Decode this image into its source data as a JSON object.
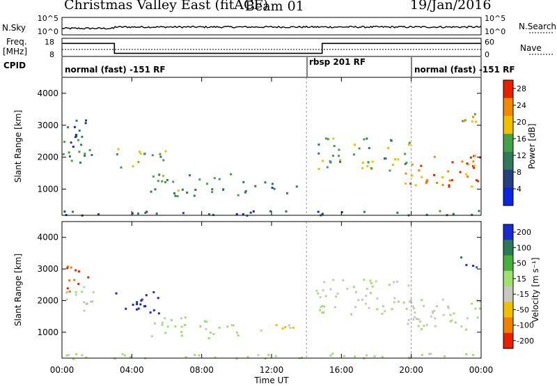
{
  "header": {
    "title": "Christmas Valley East (fitACF)",
    "beam": "Beam 01",
    "date": "19/Jan/2016"
  },
  "noise_panel": {
    "left_label": "N.Sky",
    "right_label": "N.Search",
    "left_ticks": [
      "10^5",
      "10^0"
    ],
    "right_ticks": [
      "10^5",
      "10^0"
    ]
  },
  "freq_panel": {
    "left_label_line1": "Freq.",
    "left_label_line2": "[MHz]",
    "right_label": "Nave",
    "left_ticks": [
      "18",
      "8"
    ],
    "right_ticks": [
      "60",
      "0"
    ],
    "freq_steps": [
      {
        "t0": 0,
        "t1": 3.0,
        "mhz": 16.5
      },
      {
        "t0": 3.0,
        "t1": 14.9,
        "mhz": 10.0
      },
      {
        "t0": 14.9,
        "t1": 24,
        "mhz": 16.5
      }
    ]
  },
  "cpid": {
    "label": "CPID",
    "segments": [
      {
        "text": "normal (fast) -151 RF",
        "start": 0,
        "end": 14
      },
      {
        "text": "rbsp 201 RF",
        "start": 14,
        "end": 20
      },
      {
        "text": "normal (fast) -151 RF",
        "start": 20,
        "end": 24
      }
    ]
  },
  "x_axis": {
    "label": "Time UT",
    "ticks": [
      "00:00",
      "04:00",
      "08:00",
      "12:00",
      "16:00",
      "20:00",
      "00:00"
    ]
  },
  "power_panel": {
    "ylabel": "Slant Range [km]",
    "yticks": [
      "1000",
      "2000",
      "3000",
      "4000"
    ],
    "colorbar_label": "Power [dB]",
    "colorbar_ticks": [
      "4",
      "8",
      "12",
      "16",
      "20",
      "24",
      "28"
    ],
    "colors": [
      "#0b24e0",
      "#24407e",
      "#2f7a58",
      "#46a04a",
      "#f0c000",
      "#f08a00",
      "#e82000"
    ]
  },
  "velocity_panel": {
    "ylabel": "Slant Range [km]",
    "yticks": [
      "1000",
      "2000",
      "3000",
      "4000"
    ],
    "colorbar_label": "Velocity [m s⁻¹]",
    "colorbar_ticks": [
      "200",
      "100",
      "50",
      "15",
      "-15",
      "-50",
      "-100",
      "-200"
    ],
    "colors": [
      "#1a2acc",
      "#2a7a55",
      "#48b040",
      "#a0e070",
      "#c8c8be",
      "#f0c000",
      "#f08000",
      "#e82000"
    ]
  },
  "chart_data": {
    "type": "heatmap",
    "title": "Christmas Valley East (fitACF) Beam 01 19/Jan/2016",
    "xlabel": "Time UT",
    "ylabel": "Slant Range [km]",
    "xlim_hours": [
      0,
      24
    ],
    "ylim_km": [
      180,
      4500
    ],
    "power_db_range": [
      0,
      30
    ],
    "velocity_range": [
      -200,
      200
    ],
    "echo_bands": [
      {
        "t0": 0.0,
        "t1": 1.8,
        "r0": 1650,
        "r1": 2600,
        "power_db": 14,
        "velocity": -20
      },
      {
        "t0": 0.2,
        "t1": 1.5,
        "r0": 2300,
        "r1": 3300,
        "power_db": 8,
        "velocity": -150
      },
      {
        "t0": 3.0,
        "t1": 6.0,
        "r0": 1600,
        "r1": 2300,
        "power_db": 17,
        "velocity": 180
      },
      {
        "t0": 5.0,
        "t1": 10.5,
        "r0": 800,
        "r1": 1500,
        "power_db": 14,
        "velocity": 10
      },
      {
        "t0": 11.0,
        "t1": 13.5,
        "r0": 900,
        "r1": 1300,
        "power_db": 12,
        "velocity": -60
      },
      {
        "t0": 14.5,
        "t1": 20.0,
        "r0": 1600,
        "r1": 2700,
        "power_db": 16,
        "velocity": -5
      },
      {
        "t0": 19.5,
        "t1": 24.0,
        "r0": 1100,
        "r1": 2100,
        "power_db": 24,
        "velocity": -5
      },
      {
        "t0": 22.8,
        "t1": 23.8,
        "r0": 3000,
        "r1": 3600,
        "power_db": 18,
        "velocity": 150
      },
      {
        "t0": 0.0,
        "t1": 24.0,
        "r0": 180,
        "r1": 350,
        "power_db": 8,
        "velocity": 20
      }
    ]
  }
}
